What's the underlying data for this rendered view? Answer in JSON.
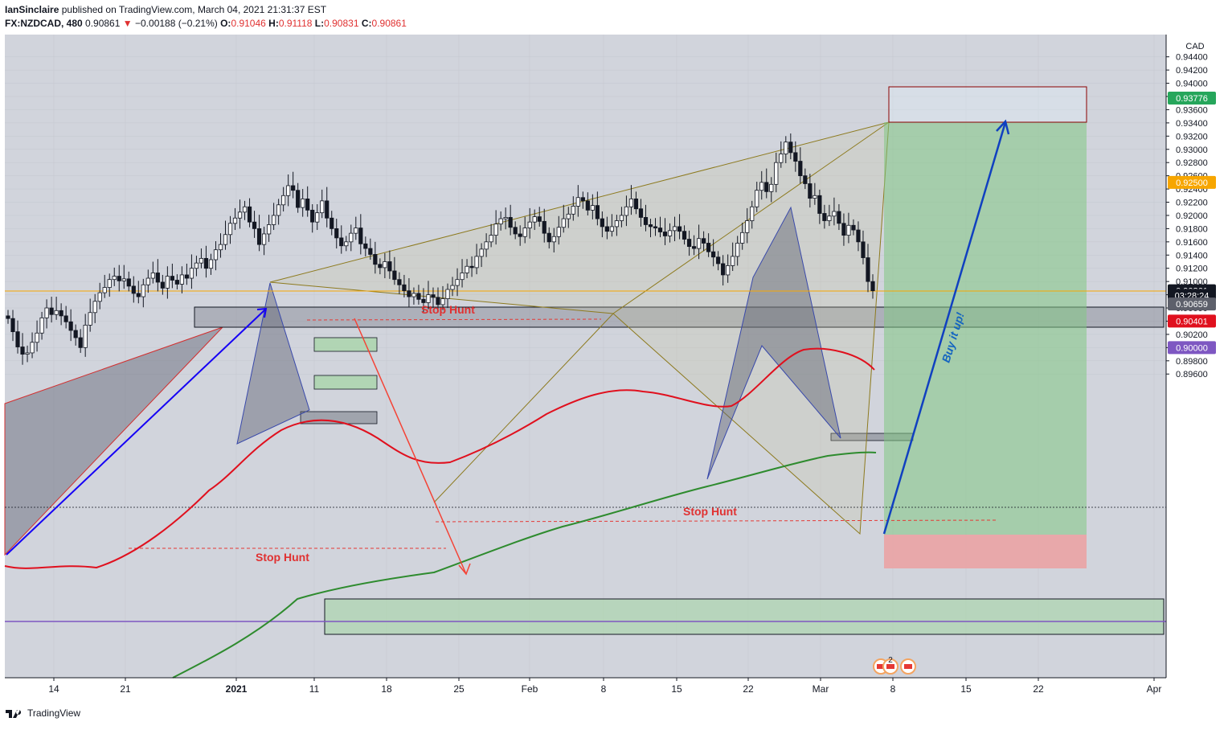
{
  "header": {
    "author": "IanSinclaire",
    "published_text": "published on TradingView.com, March 04, 2021 21:31:37 EST",
    "symbol": "FX:NZDCAD, 480",
    "last": "0.90861",
    "arrow": "▼",
    "change": "−0.00188 (−0.21%)",
    "o_label": "O:",
    "o_value": "0.91046",
    "h_label": "H:",
    "h_value": "0.91118",
    "l_label": "L:",
    "l_value": "0.90831",
    "c_label": "C:",
    "c_value": "0.90861"
  },
  "footer": {
    "brand": "TradingView"
  },
  "chart_data": {
    "type": "candlestick",
    "currency": "CAD",
    "ylim": [
      0.895,
      0.9443
    ],
    "y_ticks": [
      "0.94400",
      "0.94200",
      "0.94000",
      "0.93800",
      "0.93600",
      "0.93400",
      "0.93200",
      "0.93000",
      "0.92800",
      "0.92600",
      "0.92400",
      "0.92200",
      "0.92000",
      "0.91800",
      "0.91600",
      "0.91400",
      "0.91200",
      "0.91000",
      "0.90800",
      "0.90600",
      "0.90400",
      "0.90200",
      "0.90000",
      "0.89800",
      "0.89600"
    ],
    "x_ticks": [
      "14",
      "21",
      "2021",
      "11",
      "18",
      "25",
      "Feb",
      "8",
      "15",
      "22",
      "Mar",
      "8",
      "15",
      "22",
      "Apr"
    ],
    "price_labels": [
      {
        "text": "0.93776",
        "value": 0.93776,
        "color": "#26a65b"
      },
      {
        "text": "0.92500",
        "value": 0.925,
        "color": "#f7a600"
      },
      {
        "text": "0.90861",
        "value": 0.90861,
        "color": "#131722"
      },
      {
        "text": "03:28:24",
        "value": 0.9079,
        "color": "#131722"
      },
      {
        "text": "0.90659",
        "value": 0.90659,
        "color": "#5d606b"
      },
      {
        "text": "0.90401",
        "value": 0.90401,
        "color": "#e0101e"
      },
      {
        "text": "0.90000",
        "value": 0.9,
        "color": "#7e57c2"
      }
    ],
    "annotations": [
      {
        "text": "Stop Hunt",
        "color": "#e03131"
      },
      {
        "text": "Stop Hunt",
        "color": "#e03131"
      },
      {
        "text": "Stop Hunt",
        "color": "#e03131"
      },
      {
        "text": "Buy it up!",
        "color": "#1565c0"
      }
    ],
    "events_badge": "2",
    "candles_close": [
      0.9044,
      0.9024,
      0.9001,
      0.899,
      0.8992,
      0.9008,
      0.9022,
      0.9045,
      0.906,
      0.905,
      0.9056,
      0.9048,
      0.9039,
      0.9026,
      0.9015,
      0.9,
      0.9034,
      0.9053,
      0.907,
      0.9083,
      0.9091,
      0.9103,
      0.9108,
      0.9101,
      0.9104,
      0.9093,
      0.9082,
      0.9077,
      0.9095,
      0.9105,
      0.9113,
      0.9099,
      0.909,
      0.9108,
      0.9102,
      0.9096,
      0.911,
      0.9105,
      0.912,
      0.9128,
      0.9135,
      0.912,
      0.9133,
      0.9148,
      0.9156,
      0.9171,
      0.9188,
      0.9196,
      0.9205,
      0.9213,
      0.919,
      0.918,
      0.9156,
      0.9172,
      0.9186,
      0.92,
      0.9216,
      0.923,
      0.9245,
      0.9238,
      0.9212,
      0.9225,
      0.9208,
      0.919,
      0.9204,
      0.9222,
      0.9196,
      0.918,
      0.9166,
      0.9154,
      0.916,
      0.9173,
      0.9181,
      0.9157,
      0.915,
      0.9141,
      0.9126,
      0.9121,
      0.913,
      0.9116,
      0.9103,
      0.9095,
      0.9086,
      0.9077,
      0.9082,
      0.9073,
      0.9068,
      0.908,
      0.9076,
      0.9065,
      0.9074,
      0.9088,
      0.9094,
      0.9103,
      0.9113,
      0.9123,
      0.9121,
      0.9138,
      0.9149,
      0.916,
      0.917,
      0.9187,
      0.9195,
      0.9197,
      0.9182,
      0.9172,
      0.9168,
      0.9181,
      0.919,
      0.9198,
      0.9191,
      0.9173,
      0.916,
      0.9168,
      0.9182,
      0.9195,
      0.9202,
      0.9214,
      0.9227,
      0.9222,
      0.9208,
      0.9215,
      0.9195,
      0.9183,
      0.9176,
      0.9183,
      0.9192,
      0.92,
      0.9213,
      0.9225,
      0.921,
      0.9197,
      0.9186,
      0.9183,
      0.9181,
      0.9175,
      0.9169,
      0.9177,
      0.9183,
      0.9176,
      0.9164,
      0.9153,
      0.915,
      0.9165,
      0.9158,
      0.9145,
      0.9137,
      0.9127,
      0.911,
      0.9124,
      0.9138,
      0.9158,
      0.9174,
      0.9192,
      0.9213,
      0.9238,
      0.925,
      0.9236,
      0.9247,
      0.928,
      0.9293,
      0.9311,
      0.9295,
      0.9282,
      0.926,
      0.9248,
      0.9226,
      0.923,
      0.9203,
      0.9192,
      0.9199,
      0.9206,
      0.9188,
      0.917,
      0.9185,
      0.9178,
      0.916,
      0.9136,
      0.91,
      0.9086
    ]
  }
}
